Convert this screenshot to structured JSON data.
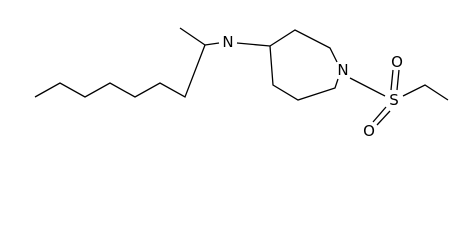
{
  "atoms": [
    {
      "label": "N"
    },
    {
      "label": "N"
    },
    {
      "label": "S"
    },
    {
      "label": "O"
    },
    {
      "label": "O"
    }
  ]
}
